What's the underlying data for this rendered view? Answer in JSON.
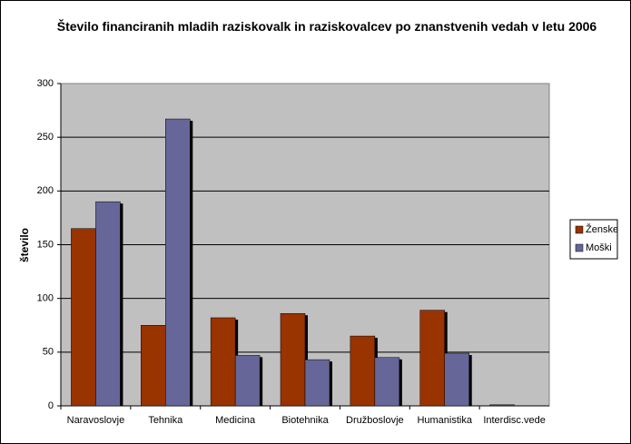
{
  "chart_data": {
    "type": "bar",
    "title": "Število financiranih mladih raziskovalk in raziskovalcev po znanstvenih vedah v letu 2006",
    "y_label": "število",
    "categories": [
      "Naravoslovje",
      "Tehnika",
      "Medicina",
      "Biotehnika",
      "Družboslovje",
      "Humanistika",
      "Interdisc.vede"
    ],
    "series": [
      {
        "name": "Ženske",
        "color": "#993300",
        "values": [
          165,
          75,
          82,
          86,
          65,
          89,
          1
        ]
      },
      {
        "name": "Moški",
        "color": "#666699",
        "values": [
          190,
          267,
          47,
          43,
          45,
          49,
          0
        ]
      }
    ],
    "ylim": [
      0,
      300
    ],
    "yticks": [
      0,
      50,
      100,
      150,
      200,
      250,
      300
    ],
    "grid": true,
    "legend": "right"
  }
}
